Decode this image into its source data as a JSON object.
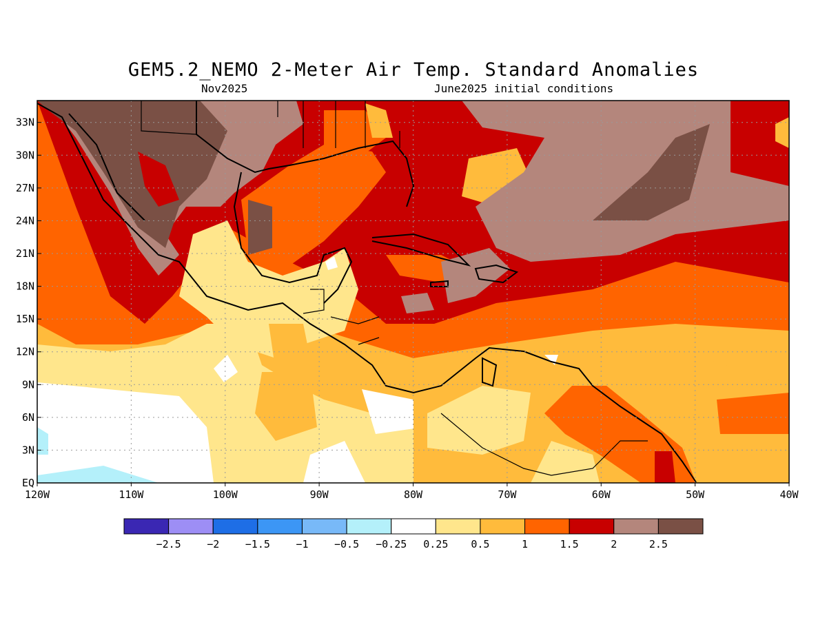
{
  "title": "GEM5.2_NEMO 2-Meter Air Temp. Standard Anomalies",
  "subtitle_left": "Nov2025",
  "subtitle_right": "June2025 initial conditions",
  "map": {
    "lat_labels": [
      "33N",
      "30N",
      "27N",
      "24N",
      "21N",
      "18N",
      "15N",
      "12N",
      "9N",
      "6N",
      "3N",
      "EQ"
    ],
    "lon_labels": [
      "120W",
      "110W",
      "100W",
      "90W",
      "80W",
      "70W",
      "60W",
      "50W",
      "40W"
    ],
    "extent": {
      "lon_min": -120,
      "lon_max": -40,
      "lat_min": 0,
      "lat_max": 35
    }
  },
  "colorbar": {
    "labels": [
      "-2.5",
      "-2",
      "-1.5",
      "-1",
      "-0.5",
      "-0.25",
      "0.25",
      "0.5",
      "1",
      "1.5",
      "2",
      "2.5"
    ],
    "colors": [
      "#3a27b3",
      "#9d8ef5",
      "#1e6ee6",
      "#3c96f5",
      "#78b9f8",
      "#b4f0fa",
      "#ffffff",
      "#ffe68c",
      "#ffbb3c",
      "#ff6400",
      "#c80000",
      "#b4867c",
      "#7a5045"
    ]
  }
}
